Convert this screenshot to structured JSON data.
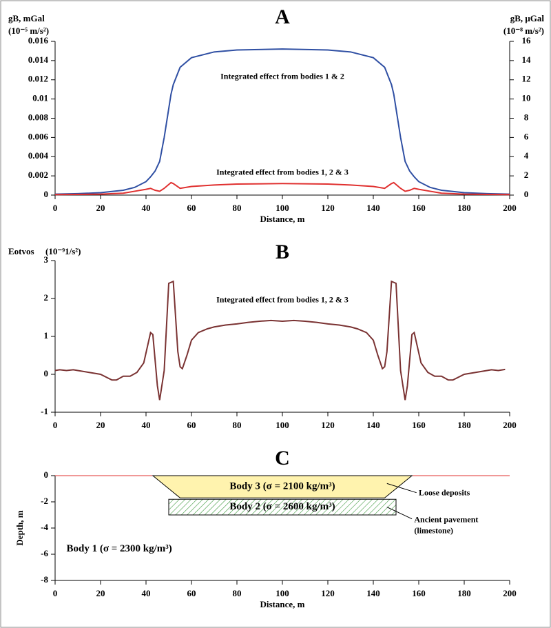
{
  "chart_data": [
    {
      "type": "line",
      "title": "A",
      "ylabel": "gB, mGal",
      "ylabel_unit": "(10⁻⁵ m/s²)",
      "y2label": "gB, μGal",
      "y2label_unit": "(10⁻⁸ m/s²)",
      "xlabel": "Distance, m",
      "xlim": [
        0,
        200
      ],
      "xticks": [
        0,
        20,
        40,
        60,
        80,
        100,
        120,
        140,
        160,
        180,
        200
      ],
      "ylim": [
        0,
        0.016
      ],
      "yticks": [
        0,
        0.002,
        0.004,
        0.006,
        0.008,
        0.01,
        0.012,
        0.014,
        0.016
      ],
      "y2lim": [
        0,
        16
      ],
      "y2ticks": [
        0,
        2,
        4,
        6,
        8,
        10,
        12,
        14,
        16
      ],
      "x": [
        0,
        10,
        20,
        30,
        35,
        40,
        42,
        44,
        46,
        48,
        50,
        51,
        52,
        55,
        60,
        70,
        80,
        100,
        120,
        130,
        140,
        145,
        148,
        149,
        150,
        152,
        154,
        156,
        158,
        160,
        165,
        170,
        180,
        190,
        200
      ],
      "series": [
        {
          "color": "#2f4fa3",
          "values": [
            0.0001,
            0.00015,
            0.00025,
            0.0005,
            0.0008,
            0.0014,
            0.0019,
            0.0025,
            0.0035,
            0.006,
            0.009,
            0.0105,
            0.0115,
            0.0133,
            0.0143,
            0.0149,
            0.0151,
            0.0152,
            0.0151,
            0.0149,
            0.0143,
            0.0133,
            0.0115,
            0.0105,
            0.009,
            0.006,
            0.0035,
            0.0025,
            0.0019,
            0.0014,
            0.0008,
            0.0005,
            0.00025,
            0.00015,
            0.0001
          ]
        },
        {
          "color": "#e0302f",
          "values": [
            5e-05,
            7e-05,
            0.0001,
            0.0002,
            0.0004,
            0.0006,
            0.0007,
            0.0005,
            0.0004,
            0.0007,
            0.0011,
            0.0013,
            0.0012,
            0.0007,
            0.0009,
            0.00105,
            0.00115,
            0.0012,
            0.00115,
            0.00105,
            0.0009,
            0.0007,
            0.0012,
            0.0013,
            0.0011,
            0.0007,
            0.0004,
            0.0005,
            0.0007,
            0.0006,
            0.0004,
            0.0002,
            0.0001,
            7e-05,
            5e-05
          ]
        }
      ],
      "annotations": [
        "Integrated effect from bodies 1 & 2",
        "Integrated effect from bodies 1, 2 & 3"
      ]
    },
    {
      "type": "line",
      "title": "B",
      "ylabel": "Eotvos",
      "ylabel_unit": "(10⁻⁹1/s²)",
      "xlim": [
        0,
        200
      ],
      "xticks": [
        0,
        20,
        40,
        60,
        80,
        100,
        120,
        140,
        160,
        180,
        200
      ],
      "ylim": [
        -1,
        3
      ],
      "yticks": [
        -1,
        0,
        1,
        2,
        3
      ],
      "x": [
        0,
        2,
        5,
        8,
        10,
        15,
        20,
        25,
        27,
        30,
        33,
        36,
        39,
        42,
        43,
        45,
        46,
        48,
        50,
        52,
        54,
        55,
        56,
        58,
        60,
        63,
        67,
        70,
        75,
        80,
        85,
        90,
        95,
        100,
        105,
        110,
        115,
        120,
        125,
        130,
        133,
        137,
        140,
        142,
        144,
        145,
        146,
        148,
        150,
        152,
        154,
        155,
        157,
        158,
        161,
        164,
        167,
        170,
        173,
        175,
        180,
        185,
        190,
        192,
        195,
        198
      ],
      "series": [
        {
          "color": "#7a3232",
          "values": [
            0.1,
            0.12,
            0.1,
            0.12,
            0.1,
            0.05,
            0,
            -0.15,
            -0.15,
            -0.05,
            -0.05,
            0.05,
            0.3,
            1.1,
            1.05,
            -0.3,
            -0.68,
            0.1,
            2.4,
            2.45,
            0.6,
            0.2,
            0.15,
            0.5,
            0.9,
            1.1,
            1.2,
            1.25,
            1.3,
            1.33,
            1.37,
            1.4,
            1.42,
            1.4,
            1.42,
            1.4,
            1.37,
            1.33,
            1.3,
            1.25,
            1.2,
            1.1,
            0.9,
            0.5,
            0.15,
            0.2,
            0.6,
            2.45,
            2.4,
            0.1,
            -0.68,
            -0.3,
            1.05,
            1.1,
            0.3,
            0.05,
            -0.05,
            -0.05,
            -0.15,
            -0.15,
            0,
            0.05,
            0.1,
            0.12,
            0.1,
            0.13
          ]
        }
      ],
      "annotations": [
        "Integrated effect from bodies 1, 2 & 3"
      ]
    },
    {
      "type": "section",
      "title": "C",
      "ylabel": "Depth, m",
      "xlabel": "Distance, m",
      "xlim": [
        0,
        200
      ],
      "xticks": [
        0,
        20,
        40,
        60,
        80,
        100,
        120,
        140,
        160,
        180,
        200
      ],
      "ylim": [
        -8,
        0
      ],
      "yticks": [
        -8,
        -6,
        -4,
        -2,
        0
      ],
      "bodies": [
        {
          "name": "Body 3 (σ = 2100 kg/m³)",
          "color": "#fff3ae",
          "hatch": false,
          "x": [
            43,
            157,
            145,
            55
          ],
          "y": [
            0,
            0,
            -1.7,
            -1.7
          ]
        },
        {
          "name": "Body 2 (σ = 2600 kg/m³)",
          "color": "#3f9a3f",
          "hatch": true,
          "x": [
            50,
            150,
            150,
            50
          ],
          "y": [
            -1.8,
            -1.8,
            -3,
            -3
          ]
        }
      ],
      "annotations": [
        "Body 1 (σ = 2300 kg/m³)",
        "Loose deposits",
        "Ancient pavement",
        "(limestone)"
      ]
    }
  ]
}
